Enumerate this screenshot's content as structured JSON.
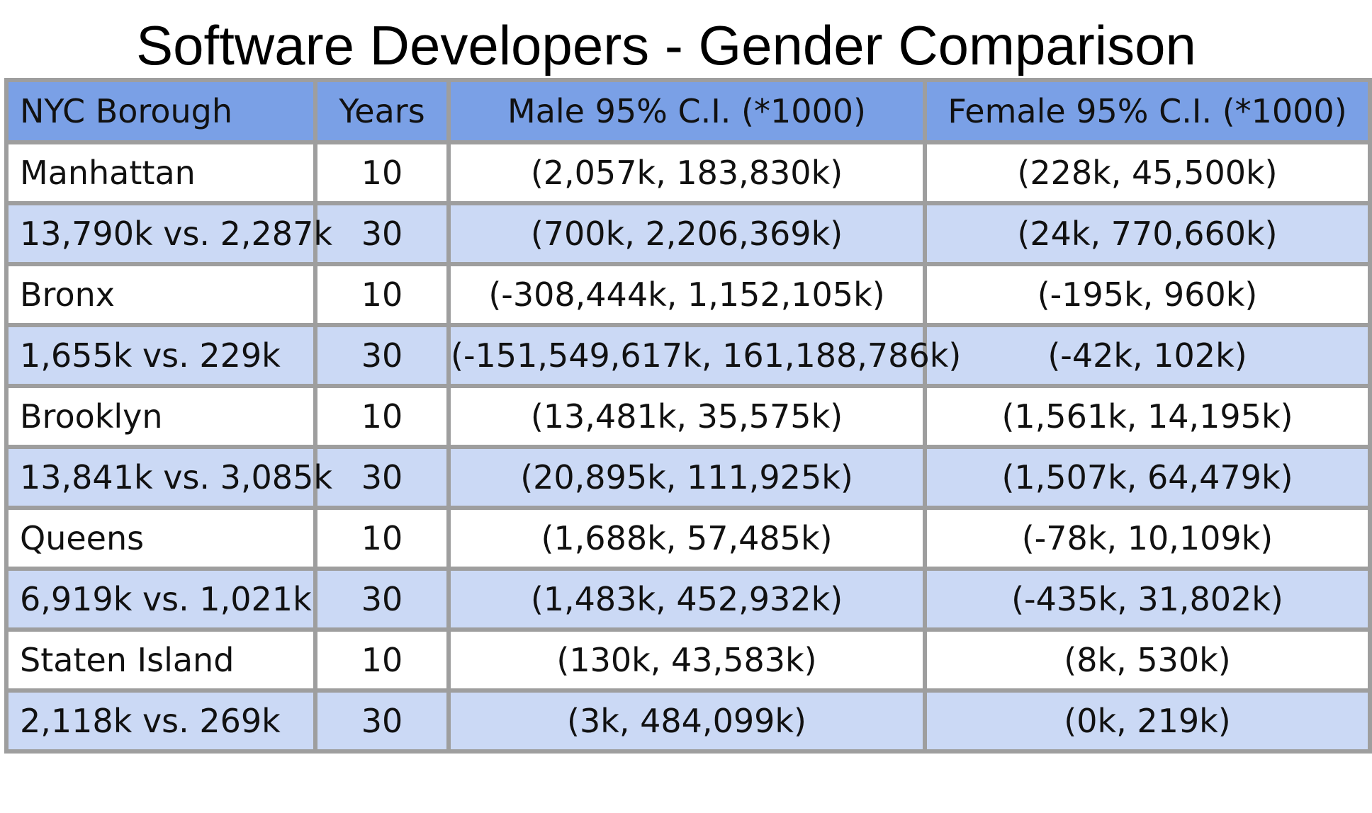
{
  "title": "Software Developers - Gender Comparison",
  "colors": {
    "header_bg": "#7aa0e6",
    "row_alt_bg": "#cbd9f5",
    "row_bg": "#ffffff",
    "border": "#9e9e9e"
  },
  "table": {
    "headers": [
      "NYC Borough",
      "Years",
      "Male 95% C.I. (*1000)",
      "Female 95% C.I. (*1000)"
    ],
    "rows": [
      [
        "Manhattan",
        "10",
        "(2,057k, 183,830k)",
        "(228k, 45,500k)"
      ],
      [
        "13,790k vs. 2,287k",
        "30",
        "(700k, 2,206,369k)",
        "(24k, 770,660k)"
      ],
      [
        "Bronx",
        "10",
        "(-308,444k, 1,152,105k)",
        "(-195k, 960k)"
      ],
      [
        "1,655k vs. 229k",
        "30",
        "(-151,549,617k, 161,188,786k)",
        "(-42k, 102k)"
      ],
      [
        "Brooklyn",
        "10",
        "(13,481k, 35,575k)",
        "(1,561k, 14,195k)"
      ],
      [
        "13,841k vs. 3,085k",
        "30",
        "(20,895k, 111,925k)",
        "(1,507k, 64,479k)"
      ],
      [
        "Queens",
        "10",
        "(1,688k, 57,485k)",
        "(-78k, 10,109k)"
      ],
      [
        "6,919k vs. 1,021k",
        "30",
        "(1,483k, 452,932k)",
        "(-435k, 31,802k)"
      ],
      [
        "Staten Island",
        "10",
        "(130k, 43,583k)",
        "(8k, 530k)"
      ],
      [
        "2,118k vs. 269k",
        "30",
        "(3k, 484,099k)",
        "(0k, 219k)"
      ]
    ]
  }
}
